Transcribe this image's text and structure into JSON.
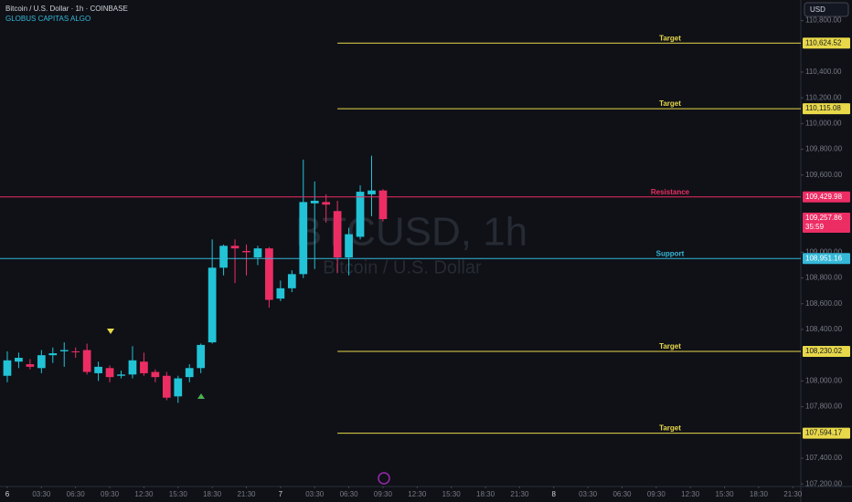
{
  "chart_data": {
    "type": "candlestick",
    "symbol_title": "Bitcoin / U.S. Dollar · 1h · COINBASE",
    "indicator": "GLOBUS CAPITAS ALGO",
    "watermark": "BTCUSD, 1h",
    "watermark_sub": "Bitcoin / U.S. Dollar",
    "currency": "USD",
    "up_color": "#22c3d6",
    "down_color": "#ec2d64",
    "candles": {
      "x": [
        0,
        1,
        2,
        3,
        4,
        5,
        6,
        7,
        8,
        9,
        10,
        11,
        12,
        13,
        14,
        15,
        16,
        17,
        18,
        19,
        20,
        21,
        22,
        23,
        24,
        25,
        26,
        27,
        28,
        29,
        30,
        31,
        32,
        33
      ],
      "open": [
        108040,
        108150,
        108130,
        108100,
        108200,
        108230,
        108230,
        108240,
        108060,
        108100,
        108040,
        108050,
        108150,
        108070,
        108040,
        107880,
        108030,
        108100,
        108300,
        108880,
        109050,
        109010,
        108960,
        109030,
        108640,
        108720,
        108830,
        109380,
        109390,
        109320,
        108960,
        109120,
        109450,
        109480
      ],
      "high": [
        108230,
        108220,
        108170,
        108240,
        108260,
        108300,
        108260,
        108290,
        108150,
        108120,
        108080,
        108270,
        108220,
        108090,
        108070,
        108040,
        108130,
        108290,
        109100,
        109060,
        109100,
        109060,
        109050,
        109040,
        108780,
        108860,
        109720,
        109550,
        109450,
        109400,
        109190,
        109520,
        109750,
        109490
      ],
      "low": [
        107990,
        108100,
        108090,
        108060,
        108140,
        108110,
        108180,
        108050,
        108000,
        107990,
        108020,
        108020,
        108040,
        107990,
        107850,
        107830,
        107990,
        108060,
        108290,
        108820,
        108760,
        108820,
        108900,
        108570,
        108620,
        108690,
        108800,
        108870,
        109230,
        108840,
        108820,
        109100,
        109280,
        109240
      ],
      "close": [
        108160,
        108180,
        108110,
        108200,
        108215,
        108240,
        108225,
        108070,
        108110,
        108030,
        108050,
        108160,
        108060,
        108030,
        107870,
        108020,
        108100,
        108280,
        108880,
        109050,
        109030,
        109000,
        109030,
        108630,
        108720,
        108830,
        109390,
        109400,
        109370,
        108960,
        109140,
        109470,
        109480,
        109257.86
      ]
    },
    "last": {
      "value": 109257.86,
      "label": "109,257.86",
      "countdown": "35:59"
    },
    "levels": [
      {
        "name": "Target",
        "value": 110624.52,
        "value_label": "110,624.52",
        "color": "#e8d84a",
        "x_start": 29
      },
      {
        "name": "Target",
        "value": 110115.08,
        "value_label": "110,115.08",
        "color": "#e8d84a",
        "x_start": 29
      },
      {
        "name": "Resistance",
        "value": 109429.98,
        "value_label": "109,429.98",
        "color": "#ec2d64"
      },
      {
        "name": "Support",
        "value": 108951.16,
        "value_label": "108,951.16",
        "color": "#35b8d8"
      },
      {
        "name": "Target",
        "value": 108230.02,
        "value_label": "108,230.02",
        "color": "#e8d84a",
        "x_start": 29
      },
      {
        "name": "Target",
        "value": 107594.17,
        "value_label": "107,594.17",
        "color": "#e8d84a",
        "x_start": 29
      }
    ],
    "ylim": [
      107180,
      110960
    ],
    "yticks": [
      {
        "value": 110800,
        "label": "110,800.00"
      },
      {
        "value": 110400,
        "label": "110,400.00"
      },
      {
        "value": 110200,
        "label": "110,200.00"
      },
      {
        "value": 110000,
        "label": "110,000.00"
      },
      {
        "value": 109800,
        "label": "109,800.00"
      },
      {
        "value": 109600,
        "label": "109,600.00"
      },
      {
        "value": 109000,
        "label": "109,000.00"
      },
      {
        "value": 108800,
        "label": "108,800.00"
      },
      {
        "value": 108600,
        "label": "108,600.00"
      },
      {
        "value": 108400,
        "label": "108,400.00"
      },
      {
        "value": 108000,
        "label": "108,000.00"
      },
      {
        "value": 107800,
        "label": "107,800.00"
      },
      {
        "value": 107400,
        "label": "107,400.00"
      },
      {
        "value": 107200,
        "label": "107,200.00"
      }
    ],
    "xlim": [
      -0.64,
      69.7
    ],
    "xticks": [
      {
        "value": 0,
        "label": "6"
      },
      {
        "value": 3,
        "label": "03:30"
      },
      {
        "value": 6,
        "label": "06:30"
      },
      {
        "value": 9,
        "label": "09:30"
      },
      {
        "value": 12,
        "label": "12:30"
      },
      {
        "value": 15,
        "label": "15:30"
      },
      {
        "value": 18,
        "label": "18:30"
      },
      {
        "value": 21,
        "label": "21:30"
      },
      {
        "value": 24,
        "label": "7"
      },
      {
        "value": 27,
        "label": "03:30"
      },
      {
        "value": 30,
        "label": "06:30"
      },
      {
        "value": 33,
        "label": "09:30"
      },
      {
        "value": 36,
        "label": "12:30"
      },
      {
        "value": 39,
        "label": "15:30"
      },
      {
        "value": 42,
        "label": "18:30"
      },
      {
        "value": 45,
        "label": "21:30"
      },
      {
        "value": 48,
        "label": "8"
      },
      {
        "value": 51,
        "label": "03:30"
      },
      {
        "value": 54,
        "label": "06:30"
      },
      {
        "value": 57,
        "label": "09:30"
      },
      {
        "value": 60,
        "label": "12:30"
      },
      {
        "value": 63,
        "label": "15:30"
      },
      {
        "value": 66,
        "label": "18:30"
      },
      {
        "value": 69,
        "label": "21:30"
      }
    ]
  }
}
